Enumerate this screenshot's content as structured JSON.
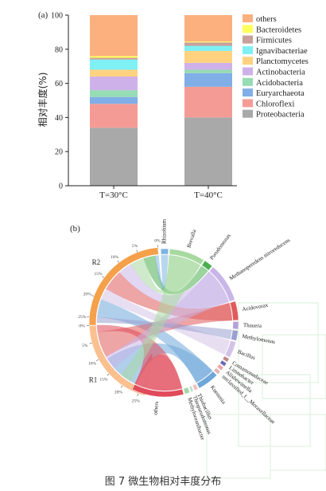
{
  "caption": "图 7 微生物相对丰度分布",
  "chart_data": [
    {
      "type": "bar",
      "stacked": true,
      "panel_label": "(a)",
      "ylabel": "相对丰度(%)",
      "xlabel": "",
      "ylim": [
        0,
        100
      ],
      "yticks": [
        0,
        20,
        40,
        60,
        80,
        100
      ],
      "categories": [
        "T=30°C",
        "T=40°C"
      ],
      "legend_position": "right",
      "series": [
        {
          "name": "Proteobacteria",
          "color": "#a9a9a9",
          "values": [
            34,
            40
          ]
        },
        {
          "name": "Chloroflexi",
          "color": "#f59b96",
          "values": [
            14,
            18
          ]
        },
        {
          "name": "Euryarchaeota",
          "color": "#80aee6",
          "values": [
            4,
            8
          ]
        },
        {
          "name": "Acidobacteria",
          "color": "#96dcb4",
          "values": [
            4,
            2
          ]
        },
        {
          "name": "Actinobacteria",
          "color": "#cfb1ea",
          "values": [
            8,
            4
          ]
        },
        {
          "name": "Planctomycetes",
          "color": "#ffd280",
          "values": [
            4,
            7
          ]
        },
        {
          "name": "Ignavibacteriae",
          "color": "#7ff0f3",
          "values": [
            6,
            3
          ]
        },
        {
          "name": "Firmicutes",
          "color": "#c8a09c",
          "values": [
            1,
            2
          ]
        },
        {
          "name": "Bacteroidetes",
          "color": "#ffff5a",
          "values": [
            1,
            0.5
          ]
        },
        {
          "name": "others",
          "color": "#fbb07e",
          "values": [
            24,
            15.5
          ]
        }
      ]
    },
    {
      "type": "chord",
      "panel_label": "(b)",
      "groups": [
        {
          "name": "R1",
          "color": "#fbc08f"
        },
        {
          "name": "R2",
          "color": "#f5a04a"
        }
      ],
      "taxa": [
        {
          "name": "Rhizobium",
          "color": "#7db4e0"
        },
        {
          "name": "Brevalla",
          "color": "#a8d9a0"
        },
        {
          "name": "Pseudomonas",
          "color": "#4caf50"
        },
        {
          "name": "Methanoperedens nitroreducens",
          "color": "#c9b6e8"
        },
        {
          "name": "Acidovorax",
          "color": "#e05b5b"
        },
        {
          "name": "Thauera",
          "color": "#b5a0d8"
        },
        {
          "name": "Methylomonas",
          "color": "#9aa0d0"
        },
        {
          "name": "Bacillus",
          "color": "#d4c3e8"
        },
        {
          "name": "Comamonadaceae",
          "color": "#c08a88"
        },
        {
          "name": "Limnobacter",
          "color": "#6b6bb8"
        },
        {
          "name": "Alishewanella",
          "color": "#f3a6a6"
        },
        {
          "name": "unclassified_f__Moraxellaceae",
          "color": "#e7b4b4"
        },
        {
          "name": "Kuenenia",
          "color": "#6fa7d8"
        },
        {
          "name": "Thiobacillus",
          "color": "#f0c0c0"
        },
        {
          "name": "Thiopseudomonas",
          "color": "#b9e0c8"
        },
        {
          "name": "Methyloceanibacter",
          "color": "#a7d5a7"
        },
        {
          "name": "others",
          "color": "#e04a5a"
        }
      ],
      "group_ticks": [
        "0%",
        "5%",
        "10%",
        "15%",
        "20%",
        "25%"
      ]
    }
  ]
}
